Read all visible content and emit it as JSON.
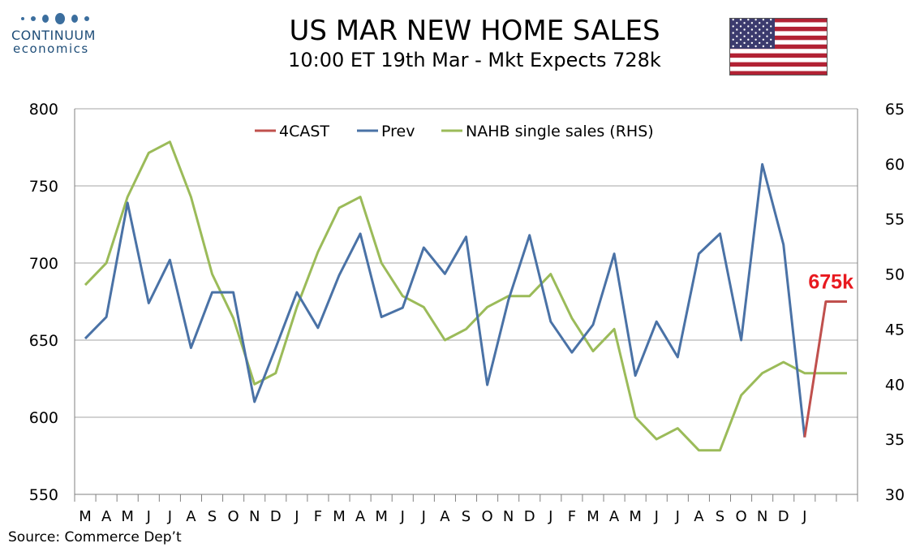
{
  "logo": {
    "name": "CONTINUUM",
    "sub": "economics"
  },
  "header": {
    "title": "US MAR NEW HOME SALES",
    "subtitle": "10:00 ET 19th Mar - Mkt Expects 728k"
  },
  "source": "Source: Commerce Dep’t",
  "flag": {
    "name": "us-flag",
    "stripe_red": "#b22234",
    "canton_blue": "#3c3b6e"
  },
  "colors": {
    "forecast": "#c0504d",
    "prev": "#4a72a6",
    "nahb": "#9bbb59",
    "grid": "#a6a6a6",
    "callout": "#e8191f"
  },
  "chart_data": {
    "type": "line",
    "categories": [
      "M",
      "A",
      "M",
      "J",
      "J",
      "A",
      "S",
      "O",
      "N",
      "D",
      "J",
      "F",
      "M",
      "A",
      "M",
      "J",
      "J",
      "A",
      "S",
      "O",
      "N",
      "D",
      "J",
      "F",
      "M",
      "A",
      "M",
      "J",
      "J",
      "A",
      "S",
      "O",
      "N",
      "D",
      "J",
      "",
      ""
    ],
    "x_tick_labels": [
      "M",
      "A",
      "M",
      "J",
      "J",
      "A",
      "S",
      "O",
      "N",
      "D",
      "J",
      "F",
      "M",
      "A",
      "M",
      "J",
      "J",
      "A",
      "S",
      "O",
      "N",
      "D",
      "J",
      "F",
      "M",
      "A",
      "M",
      "J",
      "J",
      "A",
      "S",
      "O",
      "N",
      "D",
      "J"
    ],
    "series": [
      {
        "name": "4CAST",
        "axis": "left",
        "values": [
          null,
          null,
          null,
          null,
          null,
          null,
          null,
          null,
          null,
          null,
          null,
          null,
          null,
          null,
          null,
          null,
          null,
          null,
          null,
          null,
          null,
          null,
          null,
          null,
          null,
          null,
          null,
          null,
          null,
          null,
          null,
          null,
          null,
          null,
          587,
          675,
          675
        ]
      },
      {
        "name": "Prev",
        "axis": "left",
        "values": [
          651,
          665,
          739,
          674,
          702,
          645,
          681,
          681,
          610,
          645,
          681,
          658,
          692,
          719,
          665,
          671,
          710,
          693,
          717,
          621,
          676,
          718,
          662,
          642,
          660,
          706,
          627,
          662,
          639,
          706,
          719,
          650,
          764,
          712,
          587,
          null,
          null
        ]
      },
      {
        "name": "NAHB single sales (RHS)",
        "axis": "right",
        "values": [
          49,
          51,
          57,
          61,
          62,
          57,
          50,
          46,
          40,
          41,
          47,
          52,
          56,
          57,
          51,
          48,
          47,
          44,
          45,
          47,
          48,
          48,
          50,
          46,
          43,
          45,
          37,
          35,
          36,
          34,
          34,
          39,
          41,
          42,
          41,
          41,
          41
        ]
      }
    ],
    "y_left": {
      "min": 550,
      "max": 800,
      "ticks": [
        550,
        600,
        650,
        700,
        750,
        800
      ]
    },
    "y_right": {
      "min": 30,
      "max": 65,
      "ticks": [
        30,
        35,
        40,
        45,
        50,
        55,
        60,
        65
      ]
    },
    "legend": {
      "placement": "top-center",
      "items": [
        "4CAST",
        "Prev",
        "NAHB single sales (RHS)"
      ]
    },
    "annotation": {
      "text": "675k",
      "series": "4CAST",
      "index": 36
    },
    "grid": true
  }
}
